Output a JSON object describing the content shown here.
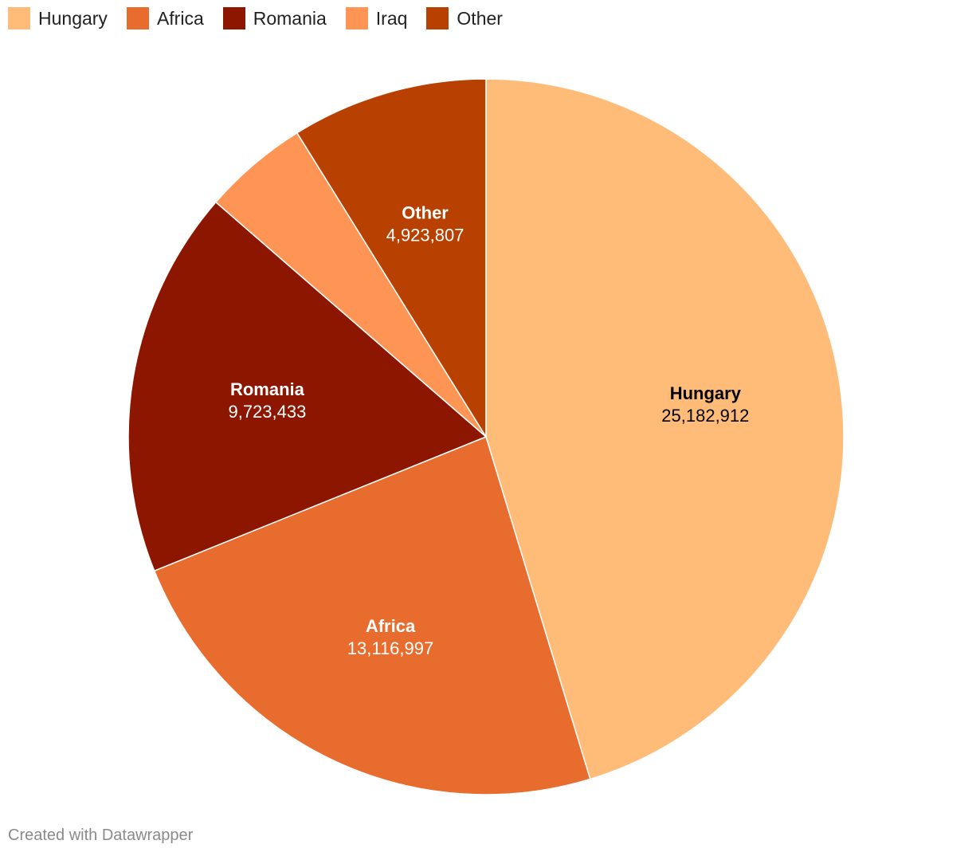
{
  "chart_data": {
    "type": "pie",
    "slices": [
      {
        "name": "Hungary",
        "value": 25182912,
        "value_label": "25,182,912",
        "color": "#ffbb78",
        "text_color": "#000000",
        "show_label": true
      },
      {
        "name": "Africa",
        "value": 13116997,
        "value_label": "13,116,997",
        "color": "#e96c2f",
        "text_color": "#ffffff",
        "show_label": true
      },
      {
        "name": "Romania",
        "value": 9723433,
        "value_label": "9,723,433",
        "color": "#8c1600",
        "text_color": "#ffffff",
        "show_label": true
      },
      {
        "name": "Iraq",
        "value": 2650000,
        "value_label": "",
        "color": "#ff9555",
        "text_color": "#ffffff",
        "show_label": false
      },
      {
        "name": "Other",
        "value": 4923807,
        "value_label": "4,923,807",
        "color": "#b84000",
        "text_color": "#ffffff",
        "show_label": true
      }
    ],
    "legend_position": "top-left",
    "title": "",
    "xlabel": "",
    "ylabel": ""
  },
  "footer": {
    "credit": "Created with Datawrapper"
  }
}
